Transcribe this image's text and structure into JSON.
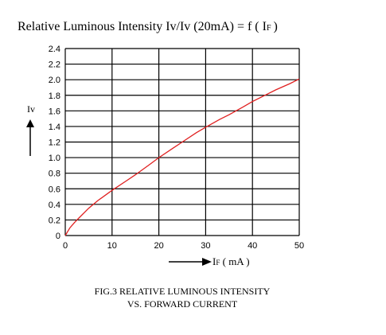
{
  "chart_data": {
    "type": "line",
    "title": "Relative Luminous Intensity  Iv/Iv (20mA) = f ( I",
    "title_sub": "F",
    "title_close": ")",
    "ylabel": "Iv",
    "xlabel_main": "I",
    "xlabel_sub": "F",
    "xlabel_unit": " ( mA )",
    "xlim": [
      0,
      50
    ],
    "ylim": [
      0,
      2.4
    ],
    "x_ticks": [
      "0",
      "10",
      "20",
      "30",
      "40",
      "50"
    ],
    "y_ticks": [
      "0",
      "0.2",
      "0.4",
      "0.6",
      "0.8",
      "1.0",
      "1.2",
      "1.4",
      "1.6",
      "1.8",
      "2.0",
      "2.2",
      "2.4"
    ],
    "grid": true,
    "series": [
      {
        "color": "#e02020",
        "x": [
          0,
          1,
          2,
          3,
          5,
          7,
          10,
          13,
          15,
          18,
          20,
          23,
          25,
          28,
          30,
          33,
          35,
          38,
          40,
          43,
          45,
          48,
          50
        ],
        "y": [
          0,
          0.1,
          0.17,
          0.23,
          0.35,
          0.45,
          0.58,
          0.7,
          0.78,
          0.91,
          1.0,
          1.12,
          1.2,
          1.32,
          1.39,
          1.49,
          1.55,
          1.65,
          1.72,
          1.81,
          1.87,
          1.95,
          2.01
        ]
      }
    ],
    "caption_line1": "FIG.3 RELATIVE LUMINOUS INTENSITY",
    "caption_line2": "VS. FORWARD CURRENT"
  }
}
